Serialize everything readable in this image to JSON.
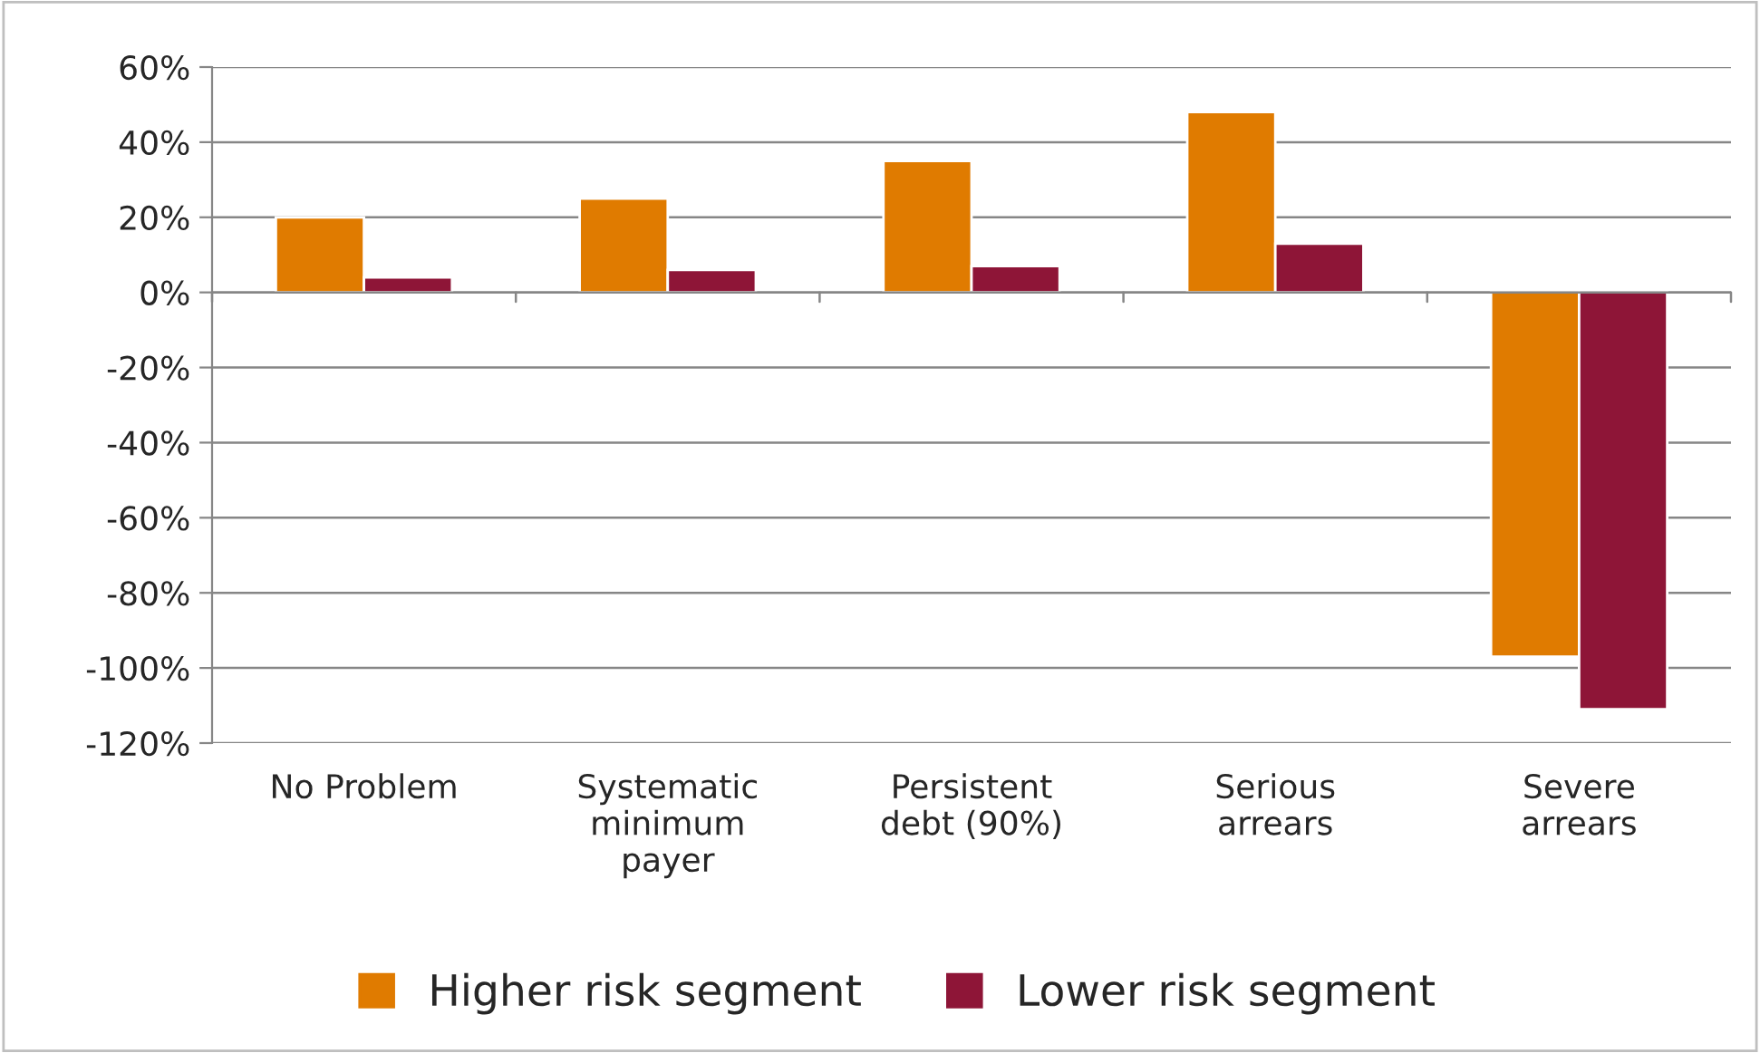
{
  "chart_data": {
    "type": "bar",
    "categories": [
      "No Problem",
      "Systematic\nminimum\npayer",
      "Persistent\ndebt (90%)",
      "Serious\narrears",
      "Severe\narrears"
    ],
    "series": [
      {
        "name": "Higher risk segment",
        "color": "#e07b00",
        "values": [
          20,
          25,
          35,
          48,
          -97
        ]
      },
      {
        "name": "Lower risk segment",
        "color": "#8e1537",
        "values": [
          4,
          6,
          7,
          13,
          -111
        ]
      }
    ],
    "ylim": [
      -120,
      60
    ],
    "yticks": [
      {
        "value": -120,
        "label": "-120%"
      },
      {
        "value": -100,
        "label": "-100%"
      },
      {
        "value": -80,
        "label": "-80%"
      },
      {
        "value": -60,
        "label": "-60%"
      },
      {
        "value": -40,
        "label": "-40%"
      },
      {
        "value": -20,
        "label": "-20%"
      },
      {
        "value": 0,
        "label": "0%"
      },
      {
        "value": 20,
        "label": "20%"
      },
      {
        "value": 40,
        "label": "40%"
      },
      {
        "value": 60,
        "label": "60%"
      }
    ],
    "grid": "y",
    "legend": "bottom"
  }
}
